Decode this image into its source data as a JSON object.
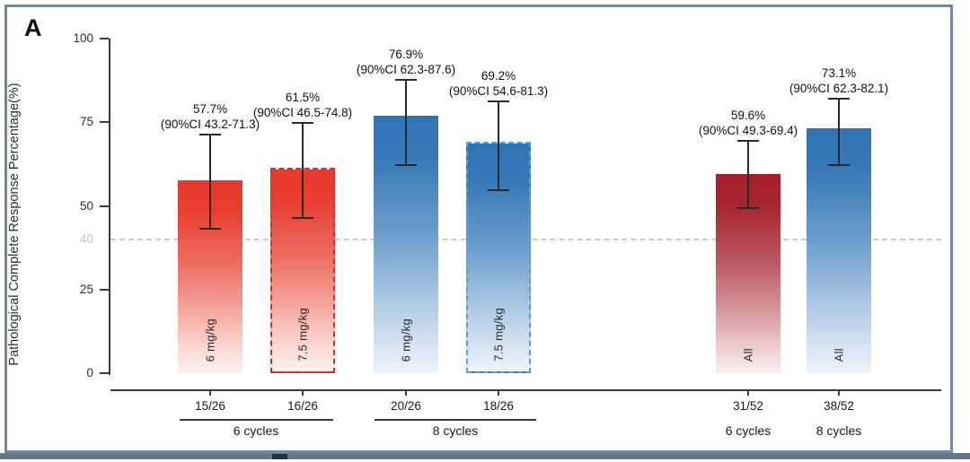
{
  "panel_label": "A",
  "chart_data": {
    "type": "bar",
    "title": "",
    "xlabel": "",
    "ylabel": "Pathological Complete Response Percentage(%)",
    "ylim": [
      0,
      100
    ],
    "yticks": [
      0,
      25,
      50,
      75,
      100
    ],
    "reference_line": {
      "value": 40,
      "label": "40",
      "style": "dashed"
    },
    "grid": false,
    "legend": false,
    "bars": [
      {
        "value": 57.7,
        "ci_low": 43.2,
        "ci_high": 71.3,
        "value_label": "57.7%",
        "ci_label": "(90%CI 43.2-71.3)",
        "dose_label": "6 mg/kg",
        "count_label": "15/26",
        "color": "red",
        "dashed": false
      },
      {
        "value": 61.5,
        "ci_low": 46.5,
        "ci_high": 74.8,
        "value_label": "61.5%",
        "ci_label": "(90%CI 46.5-74.8)",
        "dose_label": "7.5 mg/kg",
        "count_label": "16/26",
        "color": "red",
        "dashed": true
      },
      {
        "value": 76.9,
        "ci_low": 62.3,
        "ci_high": 87.6,
        "value_label": "76.9%",
        "ci_label": "(90%CI 62.3-87.6)",
        "dose_label": "6 mg/kg",
        "count_label": "20/26",
        "color": "blue",
        "dashed": false
      },
      {
        "value": 69.2,
        "ci_low": 54.6,
        "ci_high": 81.3,
        "value_label": "69.2%",
        "ci_label": "(90%CI 54.6-81.3)",
        "dose_label": "7.5 mg/kg",
        "count_label": "18/26",
        "color": "blue",
        "dashed": true
      },
      {
        "value": 59.6,
        "ci_low": 49.3,
        "ci_high": 69.4,
        "value_label": "59.6%",
        "ci_label": "(90%CI 49.3-69.4)",
        "dose_label": "All",
        "count_label": "31/52",
        "color": "darkred",
        "dashed": false
      },
      {
        "value": 73.1,
        "ci_low": 62.3,
        "ci_high": 82.1,
        "value_label": "73.1%",
        "ci_label": "(90%CI 62.3-82.1)",
        "dose_label": "All",
        "count_label": "38/52",
        "color": "blue",
        "dashed": false
      }
    ],
    "group_labels": [
      "6 cycles",
      "8 cycles",
      "6 cycles",
      "8 cycles"
    ]
  },
  "colors": {
    "red_bar_top": "#E63A2E",
    "dark_red_bar_top": "#A41E2B",
    "blue_bar_top": "#2E74B5",
    "red_dash_border": "#CE3327",
    "blue_dash_border": "#5E9BD3",
    "axis": "#3B3B3B",
    "reference_line": "#CBCBCB",
    "frame_border": "#7189A6",
    "bottom_strip": "#66758A"
  }
}
